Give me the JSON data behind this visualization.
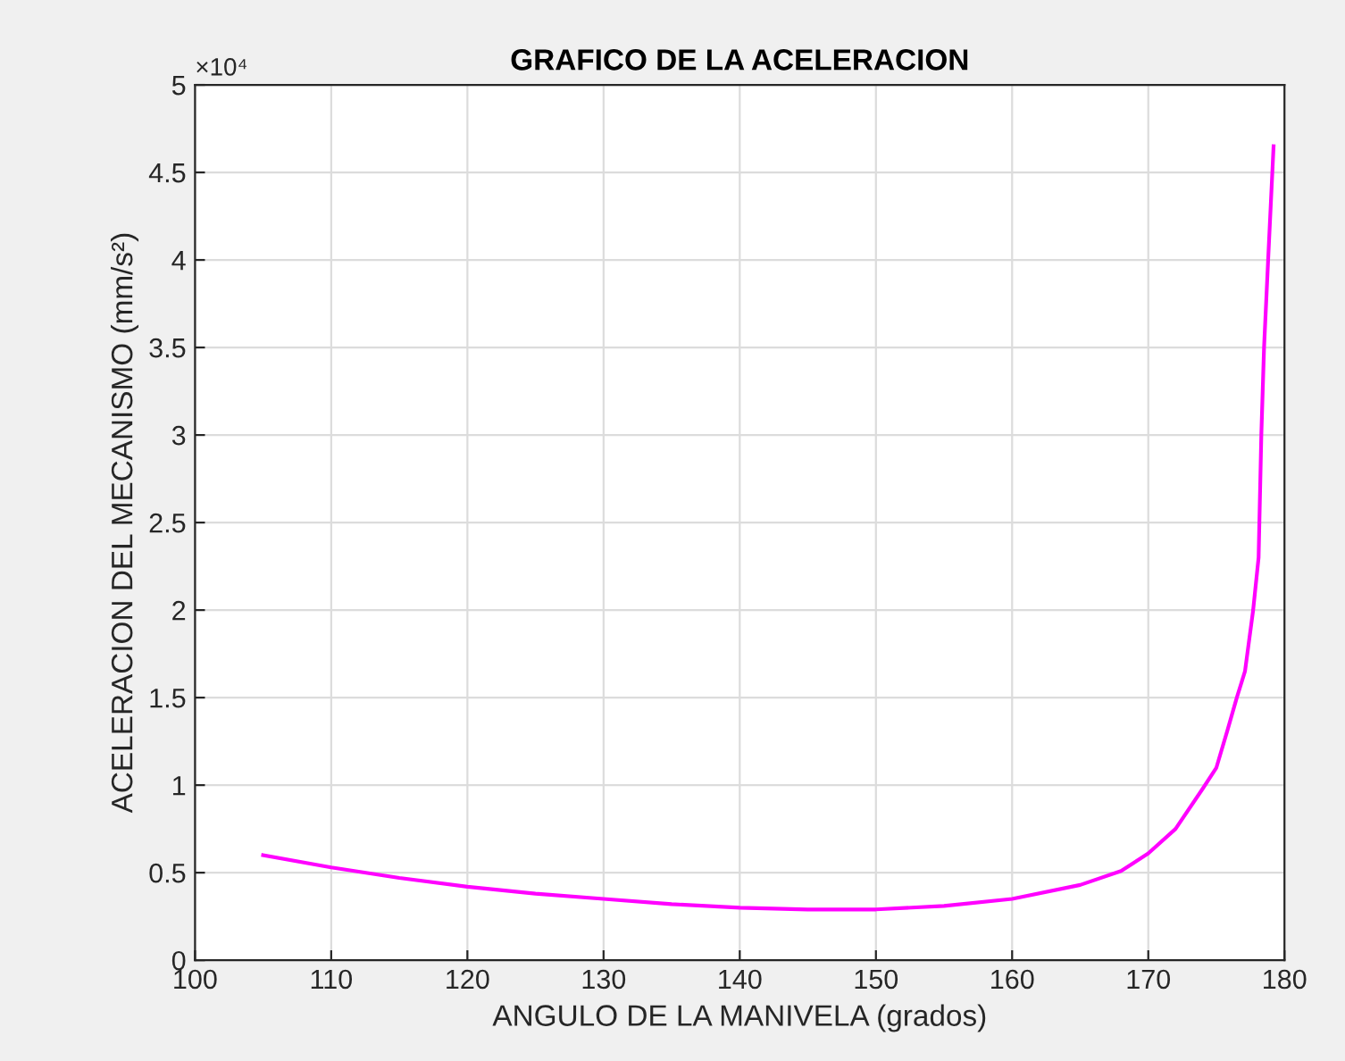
{
  "chart_data": {
    "type": "line",
    "title": "GRAFICO DE LA ACELERACION",
    "xlabel": "ANGULO DE LA MANIVELA (grados)",
    "ylabel": "ACELERACION DEL MECANISMO (mm/s²)",
    "annotations": [
      "×10⁴"
    ],
    "x": [
      105,
      110,
      115,
      120,
      125,
      130,
      135,
      140,
      145,
      150,
      155,
      160,
      165,
      168,
      170,
      172,
      174,
      175,
      175.8,
      176.5,
      177.1,
      177.7,
      178.1,
      178.3,
      178.5,
      178.8,
      179.2
    ],
    "series": [
      {
        "color": "#ff00ff",
        "values": [
          0.6,
          0.53,
          0.47,
          0.42,
          0.38,
          0.35,
          0.32,
          0.3,
          0.29,
          0.29,
          0.31,
          0.35,
          0.43,
          0.51,
          0.61,
          0.75,
          0.98,
          1.1,
          1.31,
          1.5,
          1.65,
          2.0,
          2.3,
          3.0,
          3.5,
          4.0,
          4.65
        ]
      }
    ],
    "xlim": [
      100,
      180
    ],
    "xticks": [
      100,
      110,
      120,
      130,
      140,
      150,
      160,
      170,
      180
    ],
    "ylim": [
      0,
      5
    ],
    "yticks": [
      0,
      0.5,
      1,
      1.5,
      2,
      2.5,
      3,
      3.5,
      4,
      4.5,
      5
    ],
    "grid": true,
    "legend": false,
    "marker": "none",
    "line_style": "solid"
  }
}
